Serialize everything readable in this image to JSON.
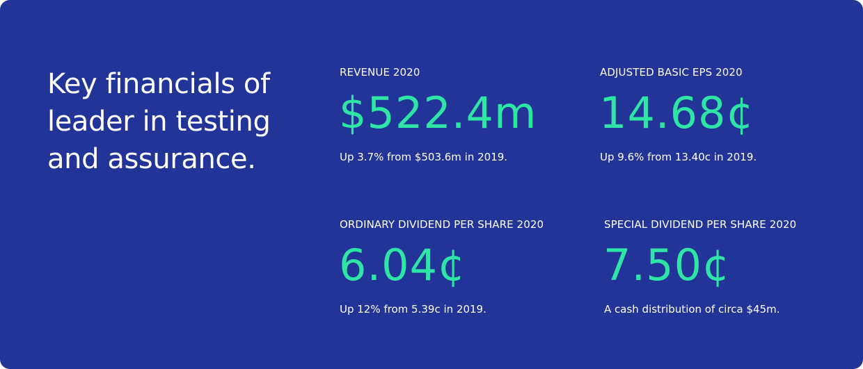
{
  "headline": "Key financials of leader in testing and assurance.",
  "metrics": [
    {
      "label": "REVENUE 2020",
      "value": "$522.4m",
      "note": "Up 3.7% from $503.6m in 2019."
    },
    {
      "label": "ADJUSTED BASIC EPS 2020",
      "value": "14.68¢",
      "note": "Up 9.6% from 13.40c in 2019."
    },
    {
      "label": "ORDINARY DIVIDEND PER SHARE 2020",
      "value": "6.04¢",
      "note": "Up 12% from 5.39c in 2019."
    },
    {
      "label": "SPECIAL DIVIDEND PER SHARE 2020",
      "value": "7.50¢",
      "note": "A cash distribution of circa $45m."
    }
  ],
  "colors": {
    "background": "#223497",
    "accent": "#2ee5a6",
    "text": "#ffffff"
  }
}
